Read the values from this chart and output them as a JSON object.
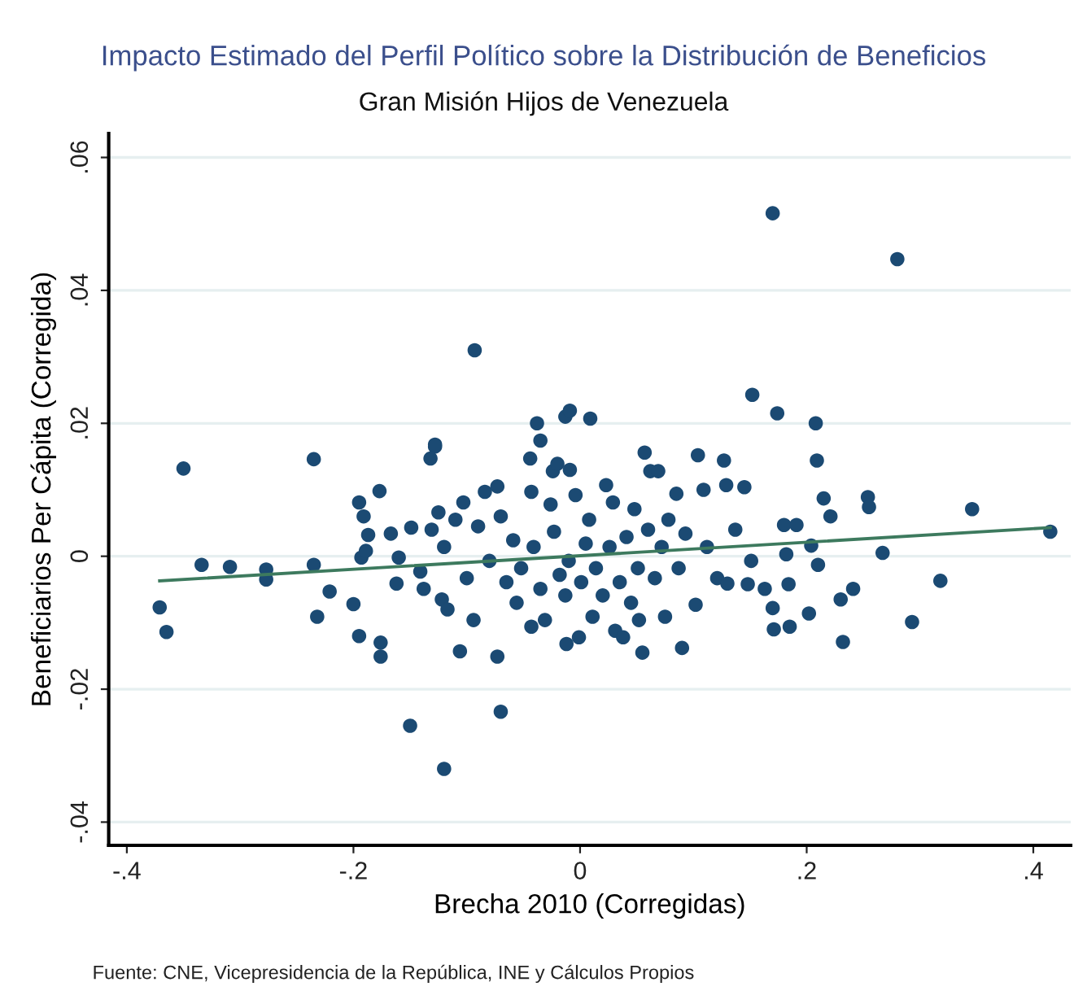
{
  "chart_data": {
    "type": "scatter",
    "title": "Impacto Estimado del Perfil Político sobre la Distribución de Beneficios",
    "subtitle": "Gran Misión Hijos de Venezuela",
    "xlabel": "Brecha 2010 (Corregidas)",
    "ylabel": "Beneficiarios Per Cápita (Corregida)",
    "annotations": [
      "Fuente: CNE, Vicepresidencia de la República, INE y Cálculos Propios"
    ],
    "xlim": [
      -0.416,
      0.433
    ],
    "ylim": [
      -0.0435,
      0.0636
    ],
    "xticks": [
      {
        "value": -0.4,
        "label": "-.4"
      },
      {
        "value": -0.2,
        "label": "-.2"
      },
      0,
      {
        "value": 0.2,
        "label": ".2"
      },
      {
        "value": 0.4,
        "label": ".4"
      }
    ],
    "yticks": [
      {
        "value": -0.04,
        "label": "-.04"
      },
      {
        "value": -0.02,
        "label": "-.02"
      },
      0,
      {
        "value": 0.02,
        "label": ".02"
      },
      {
        "value": 0.04,
        "label": ".04"
      },
      {
        "value": 0.06,
        "label": ".06"
      }
    ],
    "grid": "y",
    "series": [
      {
        "marker": "circle",
        "color": "#1b4a73",
        "x": [
          0.17,
          0.28,
          -0.093,
          0.152,
          0.174,
          0.208,
          -0.038,
          -0.035,
          -0.013,
          -0.009,
          0.009,
          -0.128,
          -0.15,
          -0.12,
          -0.07,
          -0.35,
          -0.371,
          -0.365,
          -0.334,
          -0.309,
          -0.277,
          -0.277,
          -0.235,
          -0.235,
          -0.232,
          -0.221,
          -0.2,
          -0.195,
          -0.195,
          -0.191,
          -0.177,
          -0.176,
          -0.176,
          -0.187,
          -0.193,
          -0.189,
          -0.167,
          -0.162,
          -0.16,
          -0.149,
          -0.141,
          -0.138,
          -0.132,
          -0.128,
          -0.131,
          -0.125,
          -0.12,
          -0.122,
          -0.117,
          -0.106,
          -0.11,
          -0.103,
          -0.1,
          -0.094,
          -0.09,
          -0.084,
          -0.08,
          -0.073,
          -0.073,
          -0.07,
          -0.065,
          -0.059,
          -0.056,
          -0.052,
          -0.044,
          -0.043,
          -0.043,
          -0.041,
          -0.035,
          -0.031,
          -0.026,
          -0.024,
          -0.023,
          -0.02,
          -0.018,
          -0.013,
          -0.01,
          -0.009,
          -0.012,
          -0.004,
          -0.001,
          0.001,
          0.005,
          0.008,
          0.011,
          0.014,
          0.02,
          0.023,
          0.026,
          0.029,
          0.031,
          0.035,
          0.038,
          0.041,
          0.045,
          0.048,
          0.051,
          0.052,
          0.055,
          0.057,
          0.06,
          0.062,
          0.066,
          0.069,
          0.072,
          0.075,
          0.078,
          0.085,
          0.087,
          0.09,
          0.093,
          0.102,
          0.104,
          0.109,
          0.112,
          0.121,
          0.127,
          0.129,
          0.13,
          0.137,
          0.145,
          0.148,
          0.151,
          0.163,
          0.17,
          0.171,
          0.18,
          0.182,
          0.184,
          0.185,
          0.191,
          0.202,
          0.204,
          0.209,
          0.21,
          0.215,
          0.221,
          0.23,
          0.232,
          0.241,
          0.254,
          0.255,
          0.267,
          0.293,
          0.318,
          0.346,
          0.415
        ],
        "values": [
          0.0516,
          0.0447,
          0.031,
          0.0243,
          0.0215,
          0.02,
          0.02,
          0.0174,
          0.021,
          0.0219,
          0.0207,
          0.0165,
          -0.0255,
          -0.032,
          -0.0234,
          0.0132,
          -0.0077,
          -0.0114,
          -0.0013,
          -0.0016,
          -0.002,
          -0.0035,
          0.0146,
          -0.0013,
          -0.0091,
          -0.0053,
          -0.0072,
          -0.012,
          0.0081,
          0.006,
          0.0098,
          -0.013,
          -0.0151,
          0.0032,
          -0.0002,
          0.0008,
          0.0034,
          -0.0041,
          -0.0002,
          0.0043,
          -0.0023,
          -0.0049,
          0.0147,
          0.0168,
          0.004,
          0.0066,
          0.0014,
          -0.0065,
          -0.008,
          -0.0143,
          0.0055,
          0.0081,
          -0.0033,
          -0.0096,
          0.0045,
          0.0097,
          -0.0007,
          0.0105,
          -0.0151,
          0.006,
          -0.0039,
          0.0024,
          -0.007,
          -0.0018,
          0.0147,
          0.0097,
          -0.0106,
          0.0014,
          -0.0049,
          -0.0096,
          0.0078,
          0.0128,
          0.0037,
          0.0139,
          -0.0028,
          -0.0059,
          -0.0007,
          0.013,
          -0.0132,
          0.0092,
          -0.0122,
          -0.0039,
          0.0019,
          0.0055,
          -0.0091,
          -0.0018,
          -0.0059,
          0.0107,
          0.0014,
          0.0081,
          -0.0112,
          -0.0039,
          -0.0122,
          0.0029,
          -0.007,
          0.0071,
          -0.0018,
          -0.0096,
          -0.0145,
          0.0156,
          0.004,
          0.0128,
          -0.0033,
          0.0128,
          0.0014,
          -0.0091,
          0.0055,
          0.0094,
          -0.0018,
          -0.0138,
          0.0034,
          -0.0073,
          0.0152,
          0.01,
          0.0014,
          -0.0033,
          0.0144,
          0.0107,
          -0.0041,
          0.004,
          0.0104,
          -0.0042,
          -0.0007,
          -0.0049,
          -0.0078,
          -0.011,
          0.0047,
          0.0003,
          -0.0042,
          -0.0106,
          0.0047,
          -0.0086,
          0.0016,
          0.0144,
          -0.0013,
          0.0087,
          0.006,
          -0.0065,
          -0.0129,
          -0.0049,
          0.0089,
          0.0074,
          0.0005,
          -0.0099,
          -0.0037,
          0.0071,
          0.0037
        ]
      },
      {
        "type": "line",
        "marker": "none",
        "color": "#3d7a5e",
        "x": [
          -0.371,
          0.415
        ],
        "values": [
          -0.0037,
          0.0043
        ]
      }
    ]
  }
}
